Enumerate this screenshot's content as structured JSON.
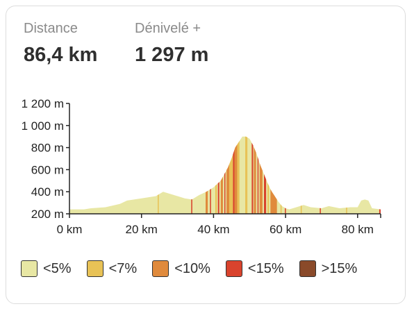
{
  "stats": {
    "distance_label": "Distance",
    "distance_value": "86,4 km",
    "elevation_label": "Dénivelé +",
    "elevation_value": "1 297 m"
  },
  "chart_data": {
    "type": "area",
    "xlabel": "",
    "ylabel": "",
    "xlim": [
      0,
      86.4
    ],
    "ylim": [
      200,
      1200
    ],
    "x_ticks": [
      0,
      20,
      40,
      60,
      80
    ],
    "x_tick_labels": [
      "0 km",
      "20 km",
      "40 km",
      "60 km",
      "80 km"
    ],
    "y_ticks": [
      200,
      400,
      600,
      800,
      1000,
      1200
    ],
    "y_tick_labels": [
      "200 m",
      "400 m",
      "600 m",
      "800 m",
      "1 000 m",
      "1 200 m"
    ],
    "profile": {
      "x": [
        0,
        4,
        6,
        10,
        14,
        16,
        20,
        24,
        26,
        28,
        30,
        32,
        34,
        36,
        38,
        40,
        42,
        44,
        45,
        46,
        47,
        48,
        49,
        50,
        51,
        52,
        53,
        54,
        55,
        56,
        57,
        58,
        59,
        60,
        61,
        63,
        65,
        67,
        70,
        72,
        75,
        78,
        80,
        81,
        82,
        83,
        84,
        86.4
      ],
      "y": [
        240,
        240,
        250,
        260,
        290,
        320,
        340,
        360,
        400,
        380,
        360,
        340,
        330,
        370,
        400,
        440,
        500,
        620,
        700,
        800,
        850,
        900,
        900,
        880,
        820,
        740,
        640,
        560,
        480,
        410,
        360,
        310,
        270,
        250,
        240,
        260,
        280,
        260,
        250,
        270,
        250,
        260,
        260,
        320,
        330,
        320,
        250,
        240
      ]
    },
    "gradient_segments": [
      {
        "x0": 24.5,
        "x1": 24.8,
        "category": "<7%"
      },
      {
        "x0": 33.8,
        "x1": 34.1,
        "category": "<15%"
      },
      {
        "x0": 37.8,
        "x1": 38.4,
        "category": "<10%"
      },
      {
        "x0": 39.0,
        "x1": 39.3,
        "category": "<15%"
      },
      {
        "x0": 40.5,
        "x1": 40.9,
        "category": "<7%"
      },
      {
        "x0": 41.2,
        "x1": 41.6,
        "category": "<15%"
      },
      {
        "x0": 42.0,
        "x1": 42.6,
        "category": "<10%"
      },
      {
        "x0": 43.0,
        "x1": 43.3,
        "category": "<15%"
      },
      {
        "x0": 43.6,
        "x1": 44.4,
        "category": "<10%"
      },
      {
        "x0": 44.4,
        "x1": 45.4,
        "category": "<7%"
      },
      {
        "x0": 45.4,
        "x1": 45.8,
        "category": "<15%"
      },
      {
        "x0": 45.8,
        "x1": 46.6,
        "category": "<10%"
      },
      {
        "x0": 46.6,
        "x1": 47.2,
        "category": "<7%"
      },
      {
        "x0": 48.8,
        "x1": 49.4,
        "category": "<7%"
      },
      {
        "x0": 50.6,
        "x1": 51.0,
        "category": "<15%"
      },
      {
        "x0": 51.2,
        "x1": 51.8,
        "category": "<10%"
      },
      {
        "x0": 52.2,
        "x1": 52.5,
        "category": "<15%"
      },
      {
        "x0": 52.8,
        "x1": 53.6,
        "category": "<10%"
      },
      {
        "x0": 54.0,
        "x1": 54.6,
        "category": "<15%"
      },
      {
        "x0": 55.0,
        "x1": 55.4,
        "category": "<7%"
      },
      {
        "x0": 55.8,
        "x1": 57.6,
        "category": "<10%"
      },
      {
        "x0": 58.6,
        "x1": 58.9,
        "category": "<7%"
      },
      {
        "x0": 59.8,
        "x1": 60.1,
        "category": "<15%"
      },
      {
        "x0": 64.2,
        "x1": 64.5,
        "category": "<7%"
      },
      {
        "x0": 69.5,
        "x1": 69.8,
        "category": "<15%"
      },
      {
        "x0": 76.8,
        "x1": 77.1,
        "category": "<7%"
      },
      {
        "x0": 86.0,
        "x1": 86.4,
        "category": "<15%"
      }
    ]
  },
  "legend": [
    {
      "label": "<5%",
      "color": "#e8e7a4"
    },
    {
      "label": "<7%",
      "color": "#e8c256"
    },
    {
      "label": "<10%",
      "color": "#e08a3c"
    },
    {
      "label": "<15%",
      "color": "#d9432d"
    },
    {
      "label": ">15%",
      "color": "#8a4a2a"
    }
  ],
  "colors": {
    "profile_fill": "#e8e7a4",
    "axis": "#222222"
  }
}
